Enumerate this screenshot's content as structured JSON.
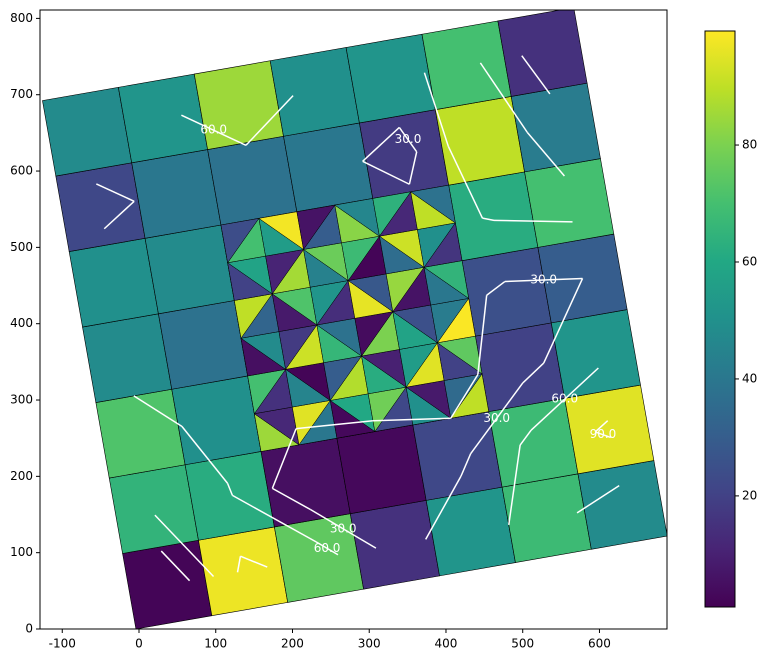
{
  "chart_data": {
    "type": "mesh",
    "xlim": [
      -129,
      688
    ],
    "ylim": [
      0,
      811
    ],
    "xticks": [
      -100,
      0,
      100,
      200,
      300,
      400,
      500,
      600
    ],
    "yticks": [
      0,
      100,
      200,
      300,
      400,
      500,
      600,
      700,
      800
    ],
    "values": [
      [
        2,
        97,
        75,
        15,
        52,
        68,
        48
      ],
      [
        65,
        62,
        5,
        3,
        22,
        68,
        95
      ],
      [
        72,
        50,
        40,
        45,
        38,
        20,
        52
      ],
      [
        48,
        38,
        42,
        50,
        44,
        25,
        30
      ],
      [
        50,
        48,
        55,
        40,
        48,
        62,
        70
      ],
      [
        22,
        40,
        38,
        40,
        18,
        90,
        42
      ],
      [
        48,
        52,
        85,
        50,
        52,
        70,
        15
      ]
    ],
    "refined_values": [
      85,
      12,
      40,
      95,
      3,
      60,
      22,
      78,
      50,
      8,
      90,
      35,
      15,
      70,
      45,
      2,
      88,
      30,
      62,
      10,
      95,
      55,
      20,
      75,
      5,
      48,
      92,
      18,
      66,
      38,
      80,
      4,
      58,
      25,
      99,
      42,
      33,
      90,
      8,
      72,
      14,
      52,
      96,
      28,
      6,
      84,
      40,
      65,
      20,
      58,
      86,
      11,
      44,
      77,
      2,
      68,
      36,
      92,
      16,
      50,
      70,
      24,
      55,
      98,
      30,
      6,
      82,
      46,
      12,
      64,
      90,
      38
    ],
    "colormap": "viridis",
    "clim": [
      1,
      99.5
    ],
    "colorbar_ticks": [
      20,
      40,
      60,
      80
    ],
    "contour_levels": [
      {
        "value": 30,
        "label": "30.0"
      },
      {
        "value": 60,
        "label": "60.0"
      },
      {
        "value": 90,
        "label": "90.0"
      }
    ],
    "contour_color": "#ffffff"
  }
}
